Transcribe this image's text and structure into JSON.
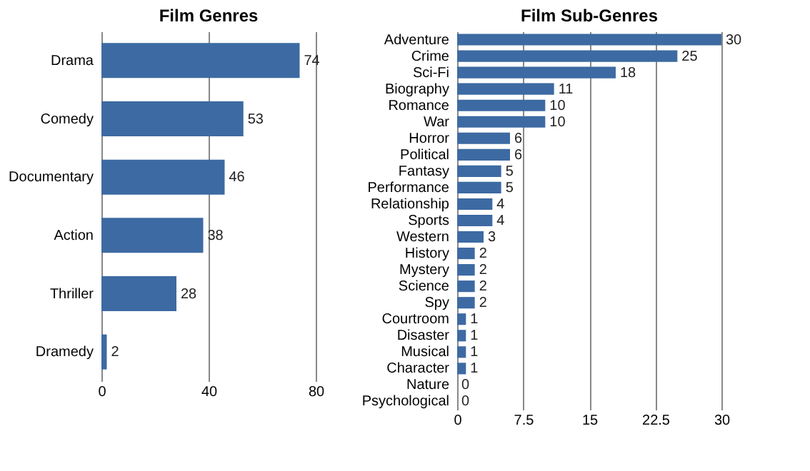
{
  "chart_data": [
    {
      "type": "bar",
      "orientation": "horizontal",
      "title": "Film Genres",
      "categories": [
        "Drama",
        "Comedy",
        "Documentary",
        "Action",
        "Thriller",
        "Dramedy"
      ],
      "values": [
        74,
        53,
        46,
        38,
        28,
        2
      ],
      "color": "#3d6aa2",
      "xlim": [
        0,
        80
      ],
      "xticks": [
        0,
        40,
        80
      ],
      "grid": "x",
      "data_labels": true
    },
    {
      "type": "bar",
      "orientation": "horizontal",
      "title": "Film Sub-Genres",
      "categories": [
        "Adventure",
        "Crime",
        "Sci-Fi",
        "Biography",
        "Romance",
        "War",
        "Horror",
        "Political",
        "Fantasy",
        "Performance",
        "Relationship",
        "Sports",
        "Western",
        "History",
        "Mystery",
        "Science",
        "Spy",
        "Courtroom",
        "Disaster",
        "Musical",
        "Character",
        "Nature",
        "Psychological"
      ],
      "values": [
        30,
        25,
        18,
        11,
        10,
        10,
        6,
        6,
        5,
        5,
        4,
        4,
        3,
        2,
        2,
        2,
        2,
        1,
        1,
        1,
        1,
        0,
        0
      ],
      "color": "#3d6aa2",
      "xlim": [
        0,
        30
      ],
      "xticks": [
        0,
        7.5,
        15,
        22.5,
        30
      ],
      "grid": "x",
      "data_labels": true
    }
  ]
}
